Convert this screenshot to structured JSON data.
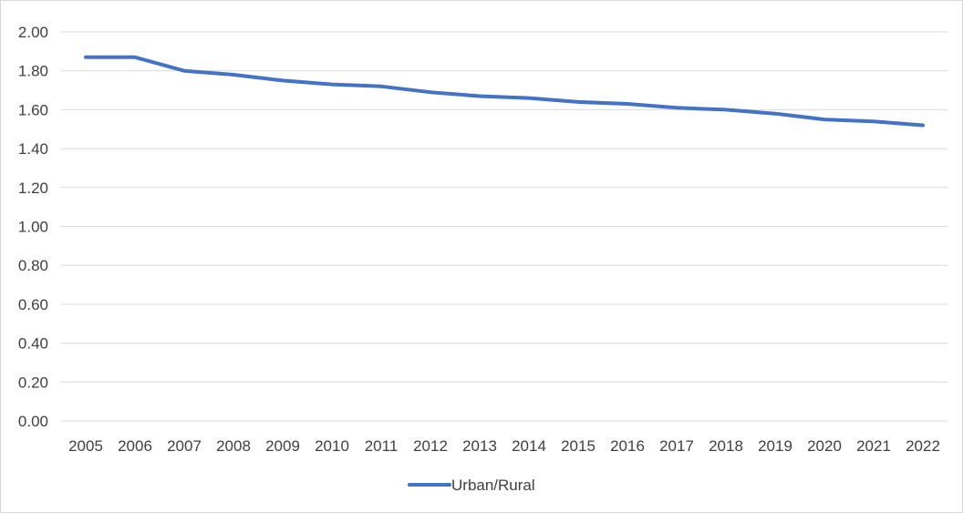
{
  "chart_data": {
    "type": "line",
    "categories": [
      "2005",
      "2006",
      "2007",
      "2008",
      "2009",
      "2010",
      "2011",
      "2012",
      "2013",
      "2014",
      "2015",
      "2016",
      "2017",
      "2018",
      "2019",
      "2020",
      "2021",
      "2022"
    ],
    "series": [
      {
        "name": "Urban/Rural",
        "values": [
          1.87,
          1.87,
          1.8,
          1.78,
          1.75,
          1.73,
          1.72,
          1.69,
          1.67,
          1.66,
          1.64,
          1.63,
          1.61,
          1.6,
          1.58,
          1.55,
          1.54,
          1.52
        ],
        "color": "#4472c4"
      }
    ],
    "y_ticks": [
      "0.00",
      "0.20",
      "0.40",
      "0.60",
      "0.80",
      "1.00",
      "1.20",
      "1.40",
      "1.60",
      "1.80",
      "2.00"
    ],
    "ylim": [
      0,
      2
    ],
    "grid": true,
    "gridline_color": "#d9d9d9",
    "legend_position": "bottom",
    "title": "",
    "xlabel": "",
    "ylabel": ""
  }
}
